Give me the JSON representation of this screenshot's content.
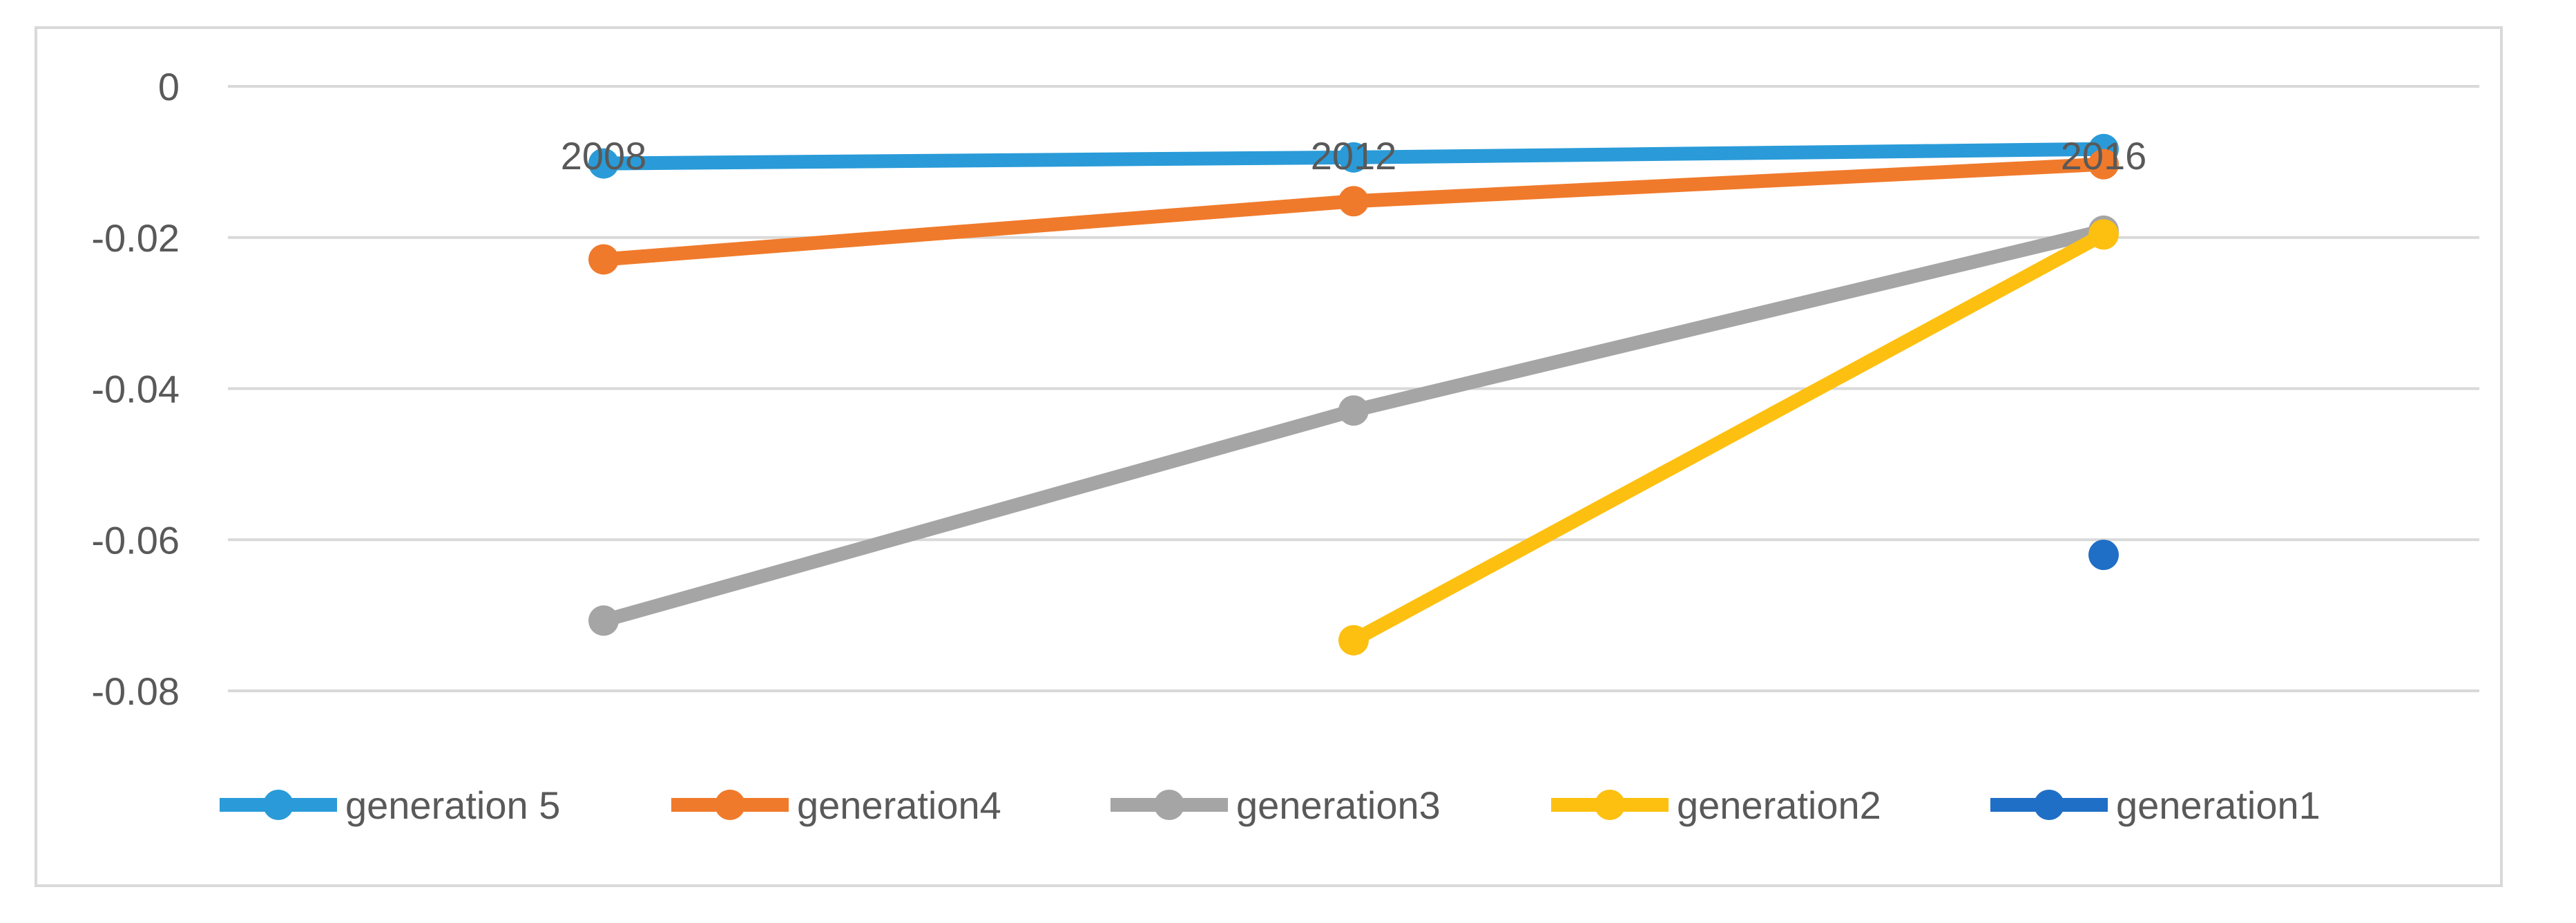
{
  "chart_data": {
    "type": "line",
    "title": "",
    "xlabel": "",
    "ylabel": "",
    "categories": [
      "2008",
      "2012",
      "2016"
    ],
    "ylim": [
      -0.08,
      0
    ],
    "yticks": [
      0,
      -0.02,
      -0.04,
      -0.06,
      -0.08
    ],
    "ytick_labels": [
      "0",
      "-0.02",
      "-0.04",
      "-0.06",
      "-0.08"
    ],
    "grid": true,
    "legend_position": "bottom",
    "series": [
      {
        "name": "generation 5",
        "color": "#2a9bd8",
        "values": [
          -0.0102,
          -0.0094,
          -0.0083
        ]
      },
      {
        "name": "generation4",
        "color": "#f07a2b",
        "values": [
          -0.0229,
          -0.0152,
          -0.0103
        ]
      },
      {
        "name": "generation3",
        "color": "#a5a5a5",
        "values": [
          -0.0707,
          -0.0429,
          -0.0191
        ]
      },
      {
        "name": "generation2",
        "color": "#fdc010",
        "values": [
          null,
          -0.0733,
          -0.0196
        ]
      },
      {
        "name": "generation1",
        "color": "#1f6fc6",
        "values": [
          null,
          null,
          -0.062
        ]
      }
    ]
  }
}
